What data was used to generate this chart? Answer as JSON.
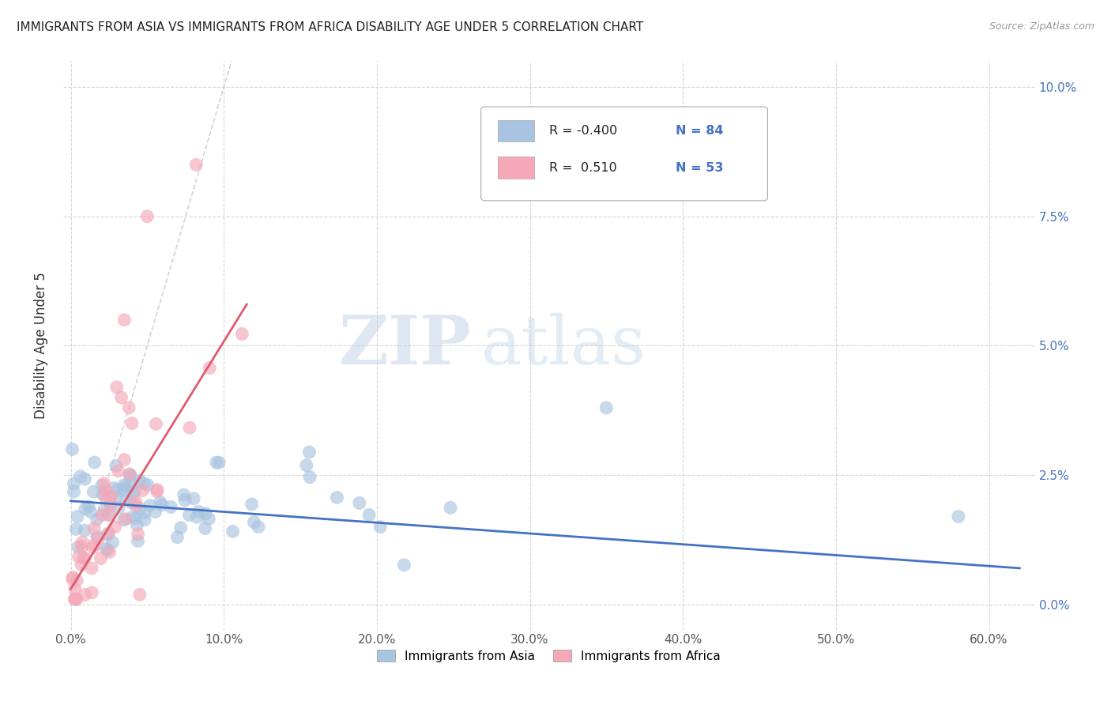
{
  "title": "IMMIGRANTS FROM ASIA VS IMMIGRANTS FROM AFRICA DISABILITY AGE UNDER 5 CORRELATION CHART",
  "source": "Source: ZipAtlas.com",
  "ylabel": "Disability Age Under 5",
  "xlim": [
    -0.005,
    0.63
  ],
  "ylim": [
    -0.005,
    0.105
  ],
  "xtick_vals": [
    0.0,
    0.1,
    0.2,
    0.3,
    0.4,
    0.5,
    0.6
  ],
  "ytick_vals": [
    0.0,
    0.025,
    0.05,
    0.075,
    0.1
  ],
  "color_asia": "#a8c4e0",
  "color_africa": "#f4a8b8",
  "color_trend_asia": "#4472c4",
  "color_trend_africa": "#e05a6e",
  "color_diagonal": "#c8c8c8",
  "R_asia": -0.4,
  "N_asia": 84,
  "R_africa": 0.51,
  "N_africa": 53,
  "legend_label_asia": "Immigrants from Asia",
  "legend_label_africa": "Immigrants from Africa",
  "watermark_zip": "ZIP",
  "watermark_atlas": "atlas"
}
